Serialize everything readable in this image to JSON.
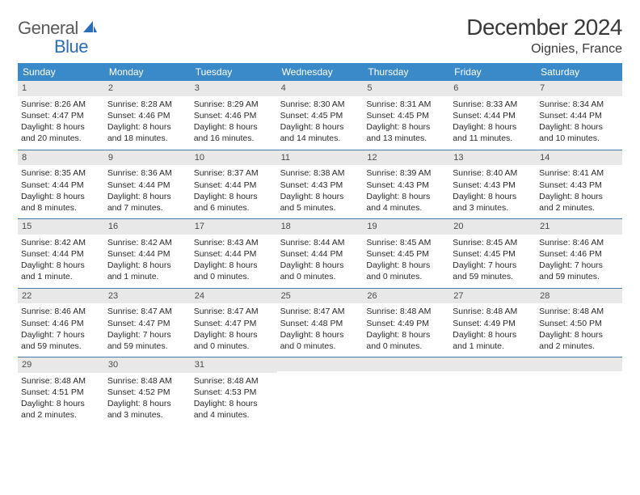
{
  "brand": {
    "part1": "General",
    "part2": "Blue"
  },
  "title": "December 2024",
  "location": "Oignies, France",
  "colors": {
    "header_bg": "#3a8ac9",
    "header_text": "#ffffff",
    "daynum_bg": "#e8e8e8",
    "week_border": "#4a7aa8",
    "text": "#2a2a2a",
    "title_color": "#3a3a3a",
    "logo_gray": "#5a5a5a",
    "logo_blue": "#2a6db8"
  },
  "weekdays": [
    "Sunday",
    "Monday",
    "Tuesday",
    "Wednesday",
    "Thursday",
    "Friday",
    "Saturday"
  ],
  "weeks": [
    [
      {
        "n": "1",
        "sr": "Sunrise: 8:26 AM",
        "ss": "Sunset: 4:47 PM",
        "d1": "Daylight: 8 hours",
        "d2": "and 20 minutes."
      },
      {
        "n": "2",
        "sr": "Sunrise: 8:28 AM",
        "ss": "Sunset: 4:46 PM",
        "d1": "Daylight: 8 hours",
        "d2": "and 18 minutes."
      },
      {
        "n": "3",
        "sr": "Sunrise: 8:29 AM",
        "ss": "Sunset: 4:46 PM",
        "d1": "Daylight: 8 hours",
        "d2": "and 16 minutes."
      },
      {
        "n": "4",
        "sr": "Sunrise: 8:30 AM",
        "ss": "Sunset: 4:45 PM",
        "d1": "Daylight: 8 hours",
        "d2": "and 14 minutes."
      },
      {
        "n": "5",
        "sr": "Sunrise: 8:31 AM",
        "ss": "Sunset: 4:45 PM",
        "d1": "Daylight: 8 hours",
        "d2": "and 13 minutes."
      },
      {
        "n": "6",
        "sr": "Sunrise: 8:33 AM",
        "ss": "Sunset: 4:44 PM",
        "d1": "Daylight: 8 hours",
        "d2": "and 11 minutes."
      },
      {
        "n": "7",
        "sr": "Sunrise: 8:34 AM",
        "ss": "Sunset: 4:44 PM",
        "d1": "Daylight: 8 hours",
        "d2": "and 10 minutes."
      }
    ],
    [
      {
        "n": "8",
        "sr": "Sunrise: 8:35 AM",
        "ss": "Sunset: 4:44 PM",
        "d1": "Daylight: 8 hours",
        "d2": "and 8 minutes."
      },
      {
        "n": "9",
        "sr": "Sunrise: 8:36 AM",
        "ss": "Sunset: 4:44 PM",
        "d1": "Daylight: 8 hours",
        "d2": "and 7 minutes."
      },
      {
        "n": "10",
        "sr": "Sunrise: 8:37 AM",
        "ss": "Sunset: 4:44 PM",
        "d1": "Daylight: 8 hours",
        "d2": "and 6 minutes."
      },
      {
        "n": "11",
        "sr": "Sunrise: 8:38 AM",
        "ss": "Sunset: 4:43 PM",
        "d1": "Daylight: 8 hours",
        "d2": "and 5 minutes."
      },
      {
        "n": "12",
        "sr": "Sunrise: 8:39 AM",
        "ss": "Sunset: 4:43 PM",
        "d1": "Daylight: 8 hours",
        "d2": "and 4 minutes."
      },
      {
        "n": "13",
        "sr": "Sunrise: 8:40 AM",
        "ss": "Sunset: 4:43 PM",
        "d1": "Daylight: 8 hours",
        "d2": "and 3 minutes."
      },
      {
        "n": "14",
        "sr": "Sunrise: 8:41 AM",
        "ss": "Sunset: 4:43 PM",
        "d1": "Daylight: 8 hours",
        "d2": "and 2 minutes."
      }
    ],
    [
      {
        "n": "15",
        "sr": "Sunrise: 8:42 AM",
        "ss": "Sunset: 4:44 PM",
        "d1": "Daylight: 8 hours",
        "d2": "and 1 minute."
      },
      {
        "n": "16",
        "sr": "Sunrise: 8:42 AM",
        "ss": "Sunset: 4:44 PM",
        "d1": "Daylight: 8 hours",
        "d2": "and 1 minute."
      },
      {
        "n": "17",
        "sr": "Sunrise: 8:43 AM",
        "ss": "Sunset: 4:44 PM",
        "d1": "Daylight: 8 hours",
        "d2": "and 0 minutes."
      },
      {
        "n": "18",
        "sr": "Sunrise: 8:44 AM",
        "ss": "Sunset: 4:44 PM",
        "d1": "Daylight: 8 hours",
        "d2": "and 0 minutes."
      },
      {
        "n": "19",
        "sr": "Sunrise: 8:45 AM",
        "ss": "Sunset: 4:45 PM",
        "d1": "Daylight: 8 hours",
        "d2": "and 0 minutes."
      },
      {
        "n": "20",
        "sr": "Sunrise: 8:45 AM",
        "ss": "Sunset: 4:45 PM",
        "d1": "Daylight: 7 hours",
        "d2": "and 59 minutes."
      },
      {
        "n": "21",
        "sr": "Sunrise: 8:46 AM",
        "ss": "Sunset: 4:46 PM",
        "d1": "Daylight: 7 hours",
        "d2": "and 59 minutes."
      }
    ],
    [
      {
        "n": "22",
        "sr": "Sunrise: 8:46 AM",
        "ss": "Sunset: 4:46 PM",
        "d1": "Daylight: 7 hours",
        "d2": "and 59 minutes."
      },
      {
        "n": "23",
        "sr": "Sunrise: 8:47 AM",
        "ss": "Sunset: 4:47 PM",
        "d1": "Daylight: 7 hours",
        "d2": "and 59 minutes."
      },
      {
        "n": "24",
        "sr": "Sunrise: 8:47 AM",
        "ss": "Sunset: 4:47 PM",
        "d1": "Daylight: 8 hours",
        "d2": "and 0 minutes."
      },
      {
        "n": "25",
        "sr": "Sunrise: 8:47 AM",
        "ss": "Sunset: 4:48 PM",
        "d1": "Daylight: 8 hours",
        "d2": "and 0 minutes."
      },
      {
        "n": "26",
        "sr": "Sunrise: 8:48 AM",
        "ss": "Sunset: 4:49 PM",
        "d1": "Daylight: 8 hours",
        "d2": "and 0 minutes."
      },
      {
        "n": "27",
        "sr": "Sunrise: 8:48 AM",
        "ss": "Sunset: 4:49 PM",
        "d1": "Daylight: 8 hours",
        "d2": "and 1 minute."
      },
      {
        "n": "28",
        "sr": "Sunrise: 8:48 AM",
        "ss": "Sunset: 4:50 PM",
        "d1": "Daylight: 8 hours",
        "d2": "and 2 minutes."
      }
    ],
    [
      {
        "n": "29",
        "sr": "Sunrise: 8:48 AM",
        "ss": "Sunset: 4:51 PM",
        "d1": "Daylight: 8 hours",
        "d2": "and 2 minutes."
      },
      {
        "n": "30",
        "sr": "Sunrise: 8:48 AM",
        "ss": "Sunset: 4:52 PM",
        "d1": "Daylight: 8 hours",
        "d2": "and 3 minutes."
      },
      {
        "n": "31",
        "sr": "Sunrise: 8:48 AM",
        "ss": "Sunset: 4:53 PM",
        "d1": "Daylight: 8 hours",
        "d2": "and 4 minutes."
      },
      null,
      null,
      null,
      null
    ]
  ]
}
